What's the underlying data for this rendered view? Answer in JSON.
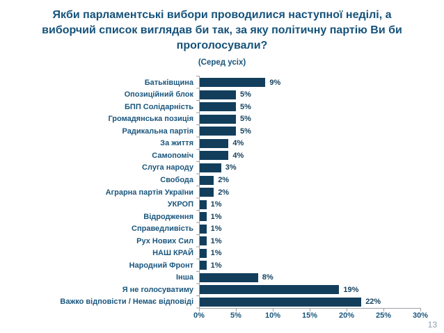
{
  "page": {
    "page_number": "13"
  },
  "title": {
    "lines": [
      "Якби парламентські вибори проводилися наступної неділі, а",
      "виборчий список виглядав би так, за яку політичну партію Ви би",
      "проголосували?"
    ],
    "subtitle": "(Серед усіх)"
  },
  "colors": {
    "bar": "#123e5c",
    "label": "#1a567d",
    "value": "#16425f",
    "title": "#15527a",
    "axis": "#9aa0a6",
    "page_number": "#8ba0b5"
  },
  "chart_data": {
    "type": "bar",
    "orientation": "horizontal",
    "title": "Якби парламентські вибори проводилися наступної неділі, а виборчий список виглядав би так, за яку політичну партію Ви би проголосували?",
    "subtitle": "(Серед усіх)",
    "categories": [
      "Батьківщина",
      "Опозиційний блок",
      "БПП Солідарність",
      "Громадянська позиція",
      "Радикальна партія",
      "За життя",
      "Самопоміч",
      "Слуга народу",
      "Свобода",
      "Аграрна партія України",
      "УКРОП",
      "Відродження",
      "Справедливість",
      "Рух Нових Сил",
      "НАШ КРАЙ",
      "Народний Фронт",
      "Інша",
      "Я не голосуватиму",
      "Важко відповісти / Немає відповіді"
    ],
    "values": [
      9,
      5,
      5,
      5,
      5,
      4,
      4,
      3,
      2,
      2,
      1,
      1,
      1,
      1,
      1,
      1,
      8,
      19,
      22
    ],
    "value_labels": [
      "9%",
      "5%",
      "5%",
      "5%",
      "5%",
      "4%",
      "4%",
      "3%",
      "2%",
      "2%",
      "1%",
      "1%",
      "1%",
      "1%",
      "1%",
      "1%",
      "8%",
      "19%",
      "22%"
    ],
    "x_ticks": [
      "0%",
      "5%",
      "10%",
      "15%",
      "20%",
      "25%",
      "30%"
    ],
    "xlim": [
      0,
      30
    ],
    "xlabel": "",
    "ylabel": "",
    "grid": false,
    "legend": "none"
  }
}
